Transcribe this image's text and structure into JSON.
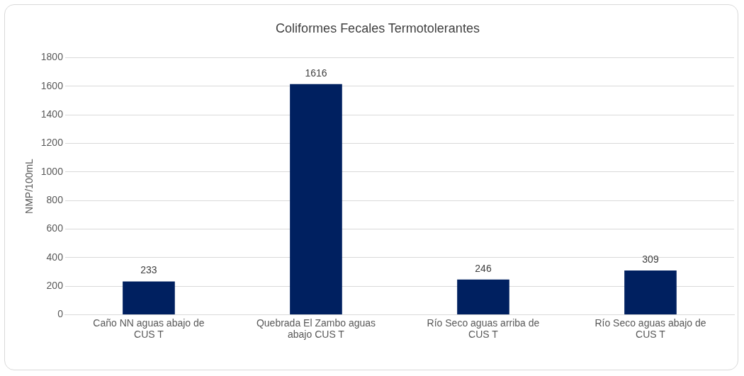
{
  "chart_data": {
    "type": "bar",
    "title": "Coliformes Fecales Termotolerantes",
    "ylabel": "NMP/100mL",
    "categories": [
      "Caño NN aguas abajo de CUS T",
      "Quebrada El Zambo aguas abajo CUS T",
      "Río Seco aguas arriba de CUS T",
      "Río Seco aguas abajo de CUS T"
    ],
    "values": [
      233,
      1616,
      246,
      309
    ],
    "color": "#002060",
    "ylim": [
      0,
      1800
    ],
    "yticks": [
      0,
      200,
      400,
      600,
      800,
      1000,
      1200,
      1400,
      1600,
      1800
    ],
    "grid": "y",
    "data_labels": true
  }
}
